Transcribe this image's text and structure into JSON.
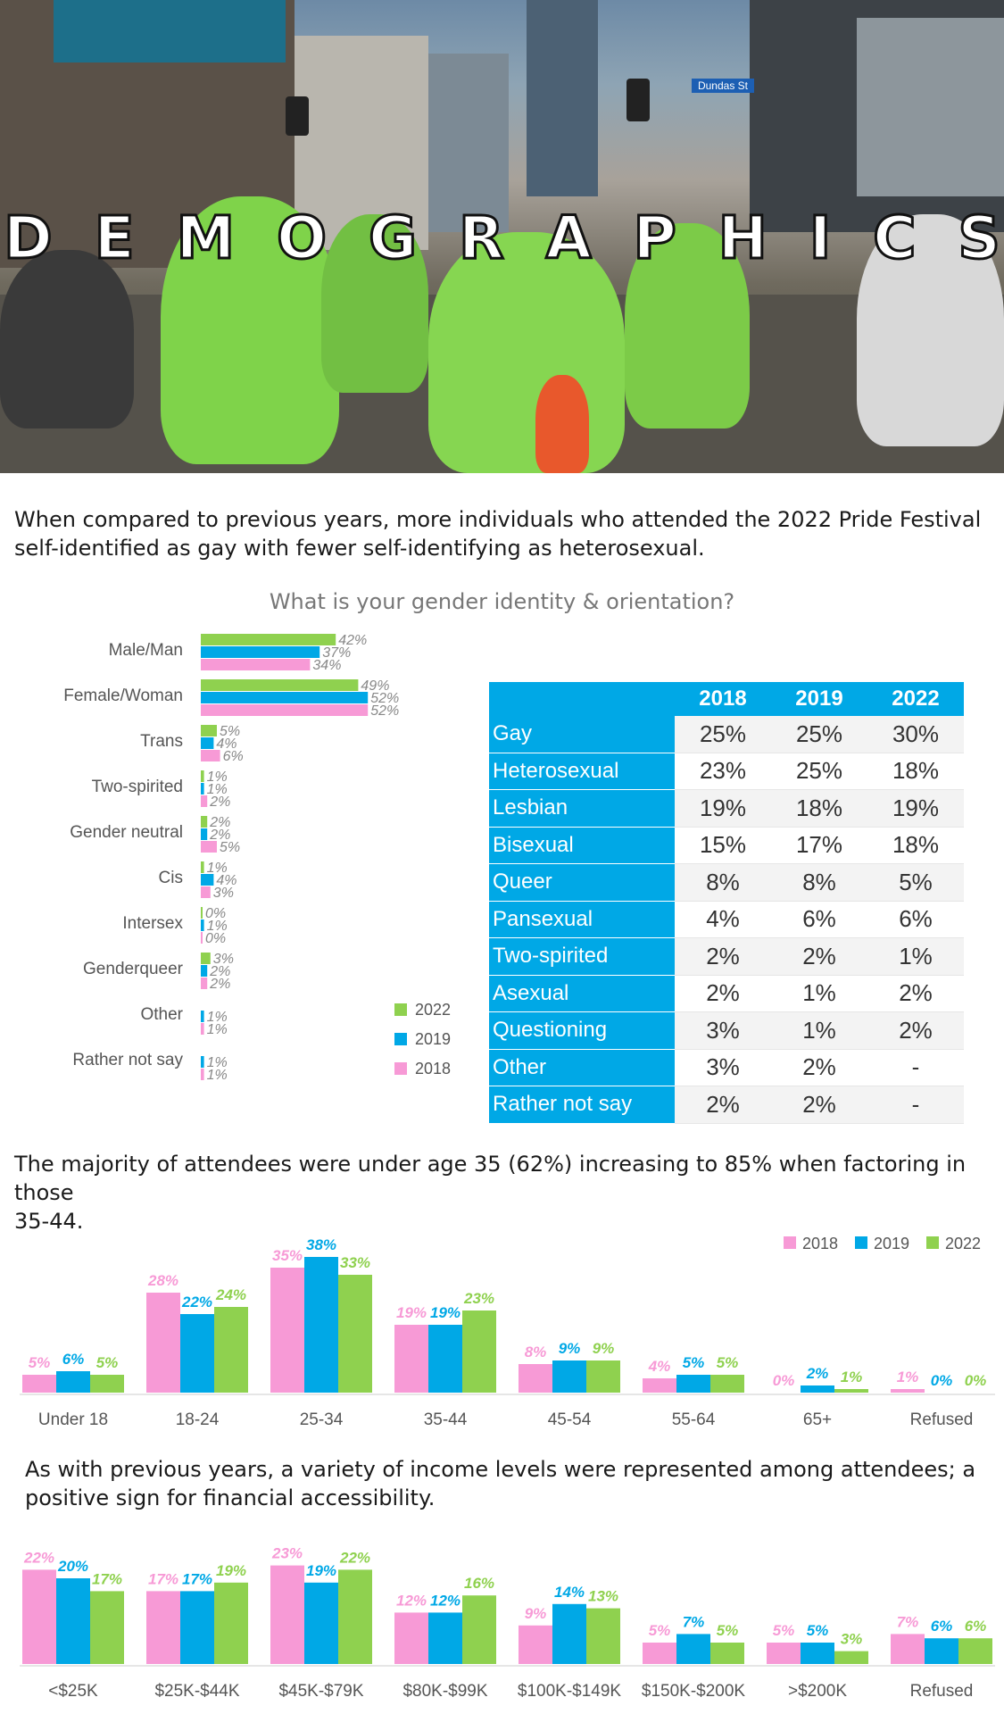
{
  "hero": {
    "title_letters": [
      "D",
      "E",
      "M",
      "O",
      "G",
      "R",
      "A",
      "P",
      "H",
      "I",
      "C",
      "S"
    ],
    "sign_text": "Dundas St"
  },
  "section1": {
    "lede_lines": [
      "When compared to previous years, more individuals who attended the 2022 Pride Festival",
      "self-identified as gay with fewer self-identifying as heterosexual."
    ],
    "question": "What is your gender identity & orientation?"
  },
  "colors": {
    "2018": "#f79ad6",
    "2019": "#00a8e6",
    "2022": "#8fd14f"
  },
  "table": {
    "headers": [
      "2018",
      "2019",
      "2022"
    ],
    "rows": [
      {
        "label": "Gay",
        "values": [
          "25%",
          "25%",
          "30%"
        ]
      },
      {
        "label": "Heterosexual",
        "values": [
          "23%",
          "25%",
          "18%"
        ]
      },
      {
        "label": "Lesbian",
        "values": [
          "19%",
          "18%",
          "19%"
        ]
      },
      {
        "label": "Bisexual",
        "values": [
          "15%",
          "17%",
          "18%"
        ]
      },
      {
        "label": "Queer",
        "values": [
          "8%",
          "8%",
          "5%"
        ]
      },
      {
        "label": "Pansexual",
        "values": [
          "4%",
          "6%",
          "6%"
        ]
      },
      {
        "label": "Two-spirited",
        "values": [
          "2%",
          "2%",
          "1%"
        ]
      },
      {
        "label": "Asexual",
        "values": [
          "2%",
          "1%",
          "2%"
        ]
      },
      {
        "label": "Questioning",
        "values": [
          "3%",
          "1%",
          "2%"
        ]
      },
      {
        "label": "Other",
        "values": [
          "3%",
          "2%",
          "-"
        ]
      },
      {
        "label": "Rather not say",
        "values": [
          "2%",
          "2%",
          "-"
        ]
      }
    ]
  },
  "section2": {
    "lede_lines": [
      "The majority of attendees were under age 35 (62%) increasing to 85% when factoring in those",
      "35-44."
    ]
  },
  "section3": {
    "lede_lines": [
      "As with previous years, a variety of income levels were represented among attendees; a",
      "positive sign for financial accessibility."
    ]
  },
  "chart_data": [
    {
      "type": "bar",
      "orientation": "horizontal",
      "title": "What is your gender identity & orientation?",
      "categories": [
        "Male/Man",
        "Female/Woman",
        "Trans",
        "Two-spirited",
        "Gender neutral",
        "Cis",
        "Intersex",
        "Genderqueer",
        "Other",
        "Rather not say"
      ],
      "series": [
        {
          "name": "2022",
          "values": [
            42,
            49,
            5,
            1,
            2,
            1,
            0,
            3,
            null,
            null
          ],
          "labels": [
            "42%",
            "49%",
            "5%",
            "1%",
            "2%",
            "1%",
            "0%",
            "3%",
            "",
            ""
          ]
        },
        {
          "name": "2019",
          "values": [
            37,
            52,
            4,
            1,
            2,
            4,
            1,
            2,
            1,
            1
          ],
          "labels": [
            "37%",
            "52%",
            "4%",
            "1%",
            "2%",
            "4%",
            "1%",
            "2%",
            "1%",
            "1%"
          ]
        },
        {
          "name": "2018",
          "values": [
            34,
            52,
            6,
            2,
            5,
            3,
            0,
            2,
            1,
            1
          ],
          "labels": [
            "34%",
            "52%",
            "6%",
            "2%",
            "5%",
            "3%",
            "0%",
            "2%",
            "1%",
            "1%"
          ]
        }
      ],
      "legend": "bottom-right"
    },
    {
      "type": "bar",
      "categories": [
        "Under 18",
        "18-24",
        "25-34",
        "35-44",
        "45-54",
        "55-64",
        "65+",
        "Refused"
      ],
      "series": [
        {
          "name": "2018",
          "values": [
            5,
            28,
            35,
            19,
            8,
            4,
            0,
            1
          ],
          "labels": [
            "5%",
            "28%",
            "35%",
            "19%",
            "8%",
            "4%",
            "0%",
            "1%"
          ]
        },
        {
          "name": "2019",
          "values": [
            6,
            22,
            38,
            19,
            9,
            5,
            2,
            0
          ],
          "labels": [
            "6%",
            "22%",
            "38%",
            "19%",
            "9%",
            "5%",
            "2%",
            "0%"
          ]
        },
        {
          "name": "2022",
          "values": [
            5,
            24,
            33,
            23,
            9,
            5,
            1,
            0
          ],
          "labels": [
            "5%",
            "24%",
            "33%",
            "23%",
            "9%",
            "5%",
            "1%",
            "0%"
          ]
        }
      ],
      "legend": "top-right"
    },
    {
      "type": "bar",
      "categories": [
        "<$25K",
        "$25K-$44K",
        "$45K-$79K",
        "$80K-$99K",
        "$100K-$149K",
        "$150K-$200K",
        ">$200K",
        "Refused"
      ],
      "series": [
        {
          "name": "2018",
          "values": [
            22,
            17,
            23,
            12,
            9,
            5,
            5,
            7
          ],
          "labels": [
            "22%",
            "17%",
            "23%",
            "12%",
            "9%",
            "5%",
            "5%",
            "7%"
          ]
        },
        {
          "name": "2019",
          "values": [
            20,
            17,
            19,
            12,
            14,
            7,
            5,
            6
          ],
          "labels": [
            "20%",
            "17%",
            "19%",
            "12%",
            "14%",
            "7%",
            "5%",
            "6%"
          ]
        },
        {
          "name": "2022",
          "values": [
            17,
            19,
            22,
            16,
            13,
            5,
            3,
            6
          ],
          "labels": [
            "17%",
            "19%",
            "22%",
            "16%",
            "13%",
            "5%",
            "3%",
            "6%"
          ]
        }
      ]
    }
  ]
}
